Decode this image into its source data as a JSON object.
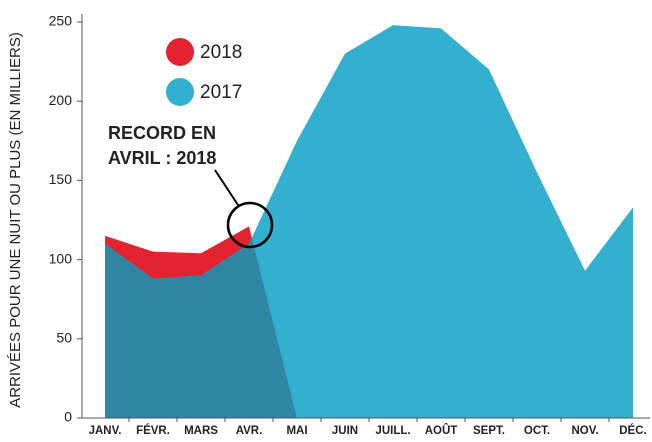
{
  "chart_data": {
    "type": "area",
    "y_label": "ARRIVÉES POUR UNE NUIT OU PLUS (EN MILLIERS)",
    "categories": [
      "JANV.",
      "FÉVR.",
      "MARS",
      "AVR.",
      "MAI",
      "JUIN",
      "JUILL.",
      "AOÛT",
      "SEPT.",
      "OCT.",
      "NOV.",
      "DÉC."
    ],
    "series": [
      {
        "name": "2018",
        "color": "#e3232f",
        "values": [
          115,
          105,
          104,
          121,
          null,
          null,
          null,
          null,
          null,
          null,
          null,
          null
        ]
      },
      {
        "name": "2017",
        "color": "#33afcf",
        "values": [
          110,
          88,
          90,
          110,
          175,
          230,
          248,
          246,
          220,
          155,
          93,
          133
        ]
      }
    ],
    "overlap_color": "#2f86a3",
    "annotation": [
      "RECORD EN",
      "AVRIL : 2018"
    ],
    "ylim": [
      0,
      250
    ],
    "yticks": [
      0,
      50,
      100,
      150,
      200,
      250
    ]
  }
}
